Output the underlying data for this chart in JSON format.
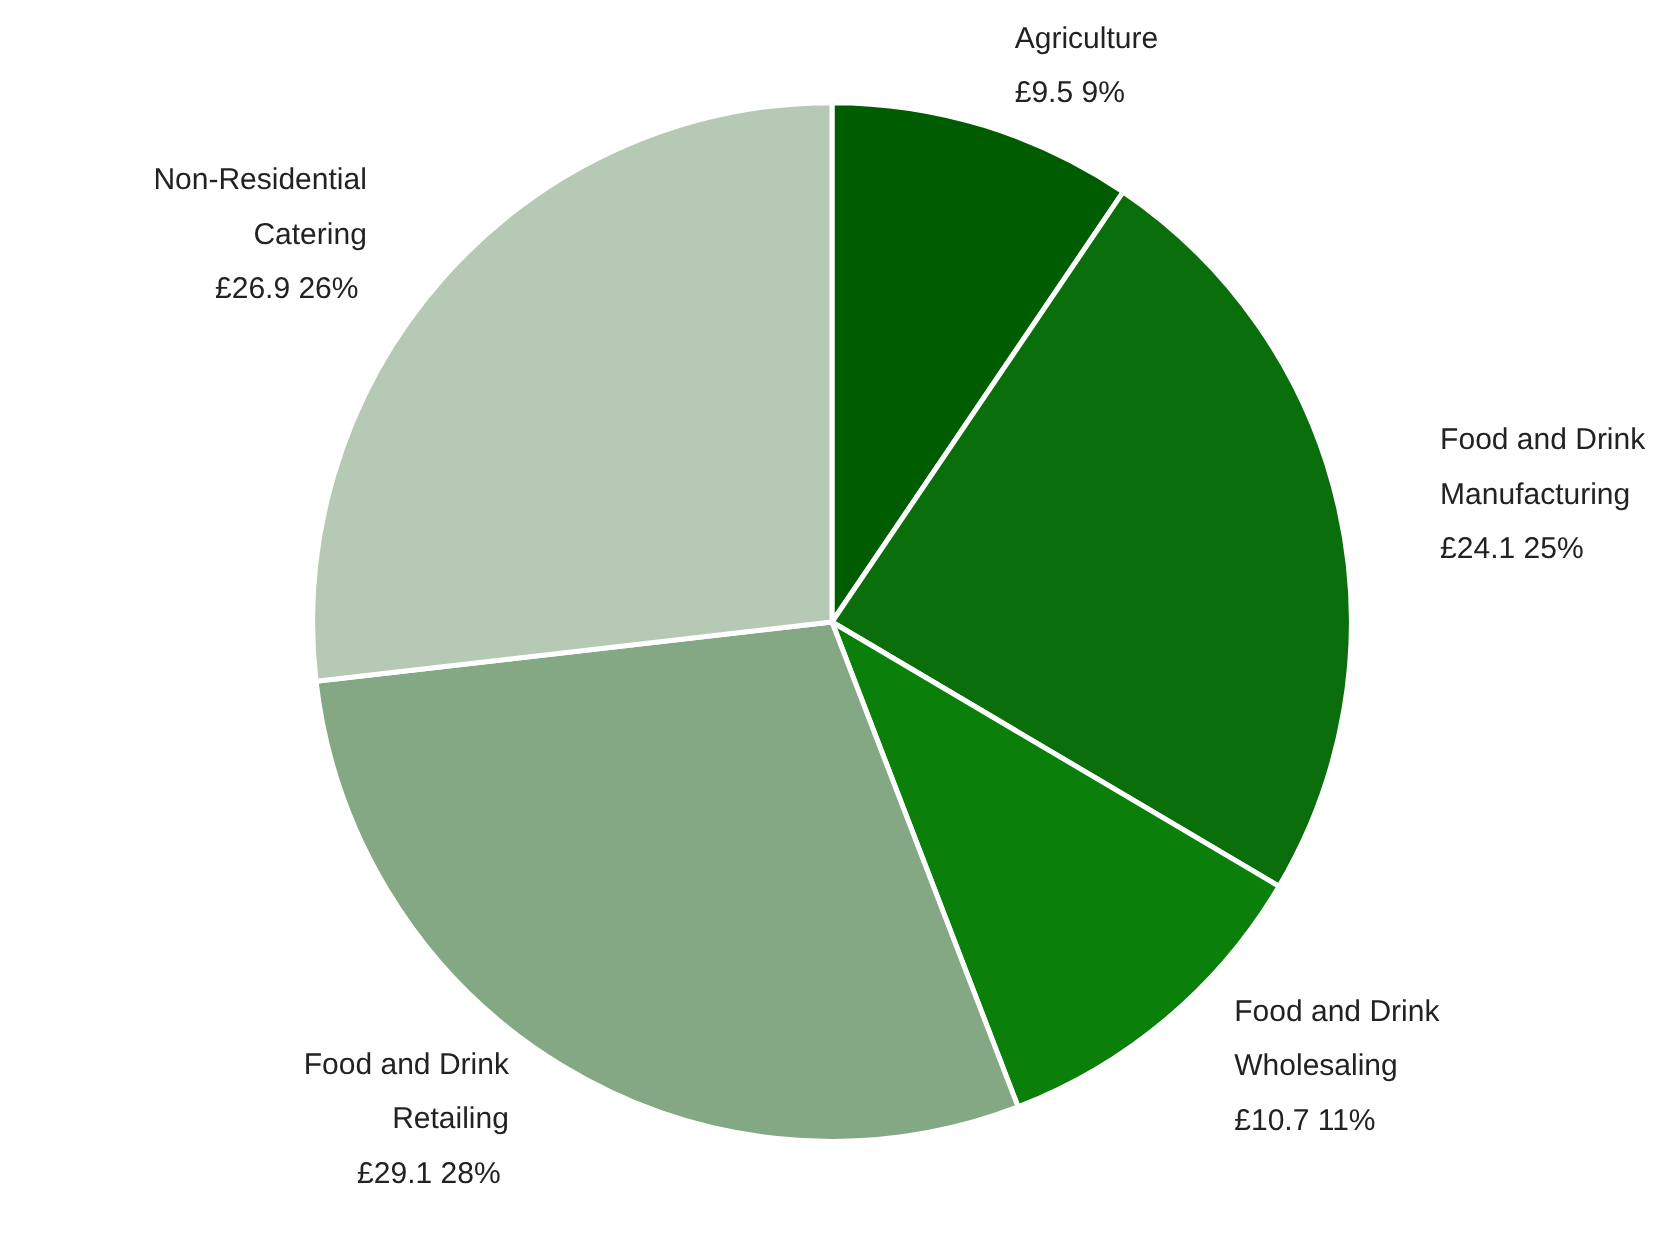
{
  "chart_data": {
    "type": "pie",
    "categories": [
      "Agriculture",
      "Food and Drink Manufacturing",
      "Food and Drink Wholesaling",
      "Food and Drink Retailing",
      "Non-Residential Catering"
    ],
    "values": [
      9.5,
      24.1,
      10.7,
      29.1,
      26.9
    ],
    "colors": [
      "#005c00",
      "#0a6e0a",
      "#0a800a",
      "#84a884",
      "#b5c9b5"
    ],
    "value_labels": [
      "£9.5  9%",
      "£24.1  25%",
      "£10.7  11%",
      "£29.1  28%",
      "£26.9  26%"
    ]
  }
}
